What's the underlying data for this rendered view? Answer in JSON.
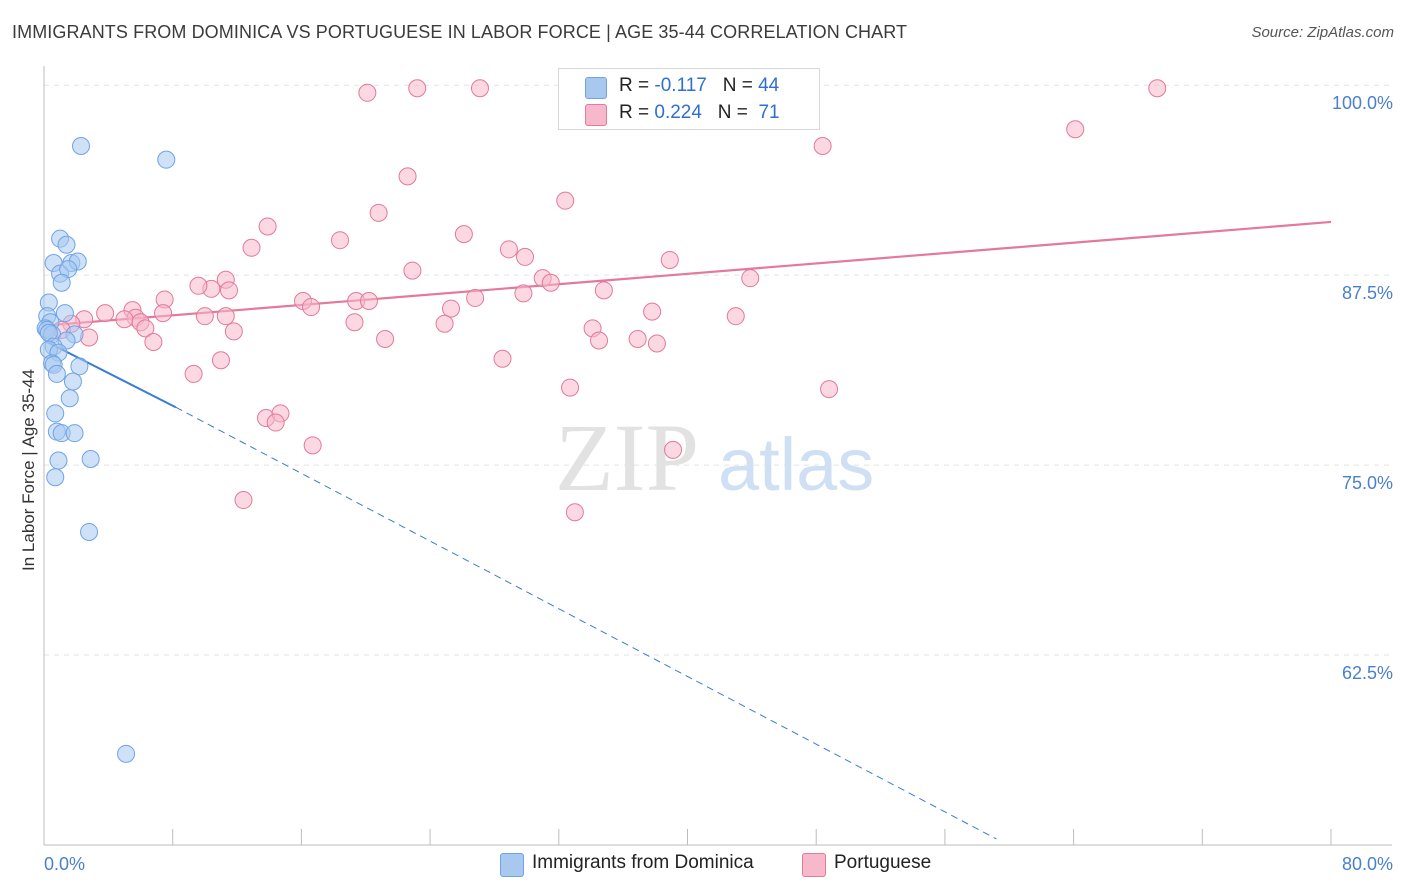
{
  "title": "IMMIGRANTS FROM DOMINICA VS PORTUGUESE IN LABOR FORCE | AGE 35-44 CORRELATION CHART",
  "source": "Source: ZipAtlas.com",
  "watermark": {
    "zip": "ZIP",
    "atlas": "atlas"
  },
  "legend": {
    "rows": [
      {
        "r_label": "R =",
        "r_value": "-0.117",
        "n_label": "N =",
        "n_value": "44",
        "color": "#a8c8f0"
      },
      {
        "r_label": "R =",
        "r_value": "0.224",
        "n_label": "N =",
        "n_value": "71",
        "color": "#f7b8cb"
      }
    ]
  },
  "bottom_legend": [
    {
      "label": "Immigrants from Dominica",
      "color": "#a8c8f0"
    },
    {
      "label": "Portuguese",
      "color": "#f7b8cb"
    }
  ],
  "chart_data": {
    "type": "scatter",
    "title": "IMMIGRANTS FROM DOMINICA VS PORTUGUESE IN LABOR FORCE | AGE 35-44 CORRELATION CHART",
    "xlabel": "",
    "ylabel": "In Labor Force | Age 35-44",
    "xlim": [
      0,
      80
    ],
    "ylim": [
      50,
      101
    ],
    "x_tick_labels": [
      "0.0%",
      "80.0%"
    ],
    "y_ticks": [
      62.5,
      75.0,
      87.5,
      100.0
    ],
    "y_tick_labels": [
      "62.5%",
      "75.0%",
      "87.5%",
      "100.0%"
    ],
    "grid": true,
    "series": [
      {
        "name": "Immigrants from Dominica",
        "color": "#6fa3e6",
        "fill": "#a8c8f0",
        "points": [
          [
            2.3,
            96.0
          ],
          [
            7.6,
            95.1
          ],
          [
            1.0,
            89.9
          ],
          [
            1.4,
            89.5
          ],
          [
            0.6,
            88.3
          ],
          [
            1.7,
            88.3
          ],
          [
            2.1,
            88.4
          ],
          [
            1.0,
            87.6
          ],
          [
            1.5,
            87.9
          ],
          [
            1.1,
            87.0
          ],
          [
            0.3,
            85.7
          ],
          [
            0.2,
            84.8
          ],
          [
            1.3,
            85.0
          ],
          [
            0.4,
            84.4
          ],
          [
            0.1,
            84.0
          ],
          [
            0.2,
            83.9
          ],
          [
            0.5,
            83.6
          ],
          [
            0.3,
            83.7
          ],
          [
            1.9,
            83.6
          ],
          [
            1.4,
            83.2
          ],
          [
            0.6,
            82.8
          ],
          [
            0.3,
            82.6
          ],
          [
            0.9,
            82.4
          ],
          [
            0.5,
            81.7
          ],
          [
            0.6,
            81.6
          ],
          [
            2.2,
            81.5
          ],
          [
            0.8,
            81.0
          ],
          [
            1.8,
            80.5
          ],
          [
            1.6,
            79.4
          ],
          [
            0.7,
            78.4
          ],
          [
            0.8,
            77.2
          ],
          [
            1.1,
            77.1
          ],
          [
            1.9,
            77.1
          ],
          [
            0.9,
            75.3
          ],
          [
            2.9,
            75.4
          ],
          [
            0.7,
            74.2
          ],
          [
            2.8,
            70.6
          ],
          [
            5.1,
            56.0
          ]
        ],
        "trend_solid": [
          [
            0.2,
            83.1
          ],
          [
            8.2,
            78.8
          ]
        ],
        "trend_dashed": [
          [
            8.2,
            78.8
          ],
          [
            59.2,
            50.4
          ]
        ]
      },
      {
        "name": "Portuguese",
        "color": "#e3799c",
        "fill": "#f7b8cb",
        "points": [
          [
            20.1,
            99.5
          ],
          [
            23.2,
            99.8
          ],
          [
            27.1,
            99.8
          ],
          [
            69.2,
            99.8
          ],
          [
            48.4,
            96.0
          ],
          [
            64.1,
            97.1
          ],
          [
            22.6,
            94.0
          ],
          [
            32.4,
            92.4
          ],
          [
            20.8,
            91.6
          ],
          [
            13.9,
            90.7
          ],
          [
            18.4,
            89.8
          ],
          [
            12.9,
            89.3
          ],
          [
            26.1,
            90.2
          ],
          [
            28.9,
            89.2
          ],
          [
            29.9,
            88.7
          ],
          [
            38.9,
            88.5
          ],
          [
            22.9,
            87.8
          ],
          [
            31.0,
            87.3
          ],
          [
            31.5,
            87.0
          ],
          [
            43.9,
            87.3
          ],
          [
            34.8,
            86.5
          ],
          [
            29.8,
            86.3
          ],
          [
            26.8,
            86.0
          ],
          [
            11.3,
            87.2
          ],
          [
            10.4,
            86.6
          ],
          [
            11.5,
            86.5
          ],
          [
            9.6,
            86.8
          ],
          [
            7.5,
            85.9
          ],
          [
            16.1,
            85.8
          ],
          [
            19.4,
            85.8
          ],
          [
            20.2,
            85.8
          ],
          [
            16.6,
            85.4
          ],
          [
            5.5,
            85.2
          ],
          [
            3.8,
            85.0
          ],
          [
            7.4,
            85.0
          ],
          [
            25.3,
            85.3
          ],
          [
            37.8,
            85.1
          ],
          [
            43.0,
            84.8
          ],
          [
            10.0,
            84.8
          ],
          [
            11.3,
            84.8
          ],
          [
            5.7,
            84.7
          ],
          [
            5.0,
            84.6
          ],
          [
            6.0,
            84.4
          ],
          [
            24.9,
            84.3
          ],
          [
            34.1,
            84.0
          ],
          [
            19.3,
            84.4
          ],
          [
            11.8,
            83.8
          ],
          [
            2.5,
            84.6
          ],
          [
            1.7,
            84.3
          ],
          [
            6.3,
            84.0
          ],
          [
            1.1,
            83.9
          ],
          [
            2.8,
            83.4
          ],
          [
            6.8,
            83.1
          ],
          [
            21.2,
            83.3
          ],
          [
            34.5,
            83.2
          ],
          [
            36.9,
            83.3
          ],
          [
            38.1,
            83.0
          ],
          [
            28.5,
            82.0
          ],
          [
            11.0,
            81.9
          ],
          [
            9.3,
            81.0
          ],
          [
            32.7,
            80.1
          ],
          [
            48.8,
            80.0
          ],
          [
            13.8,
            78.1
          ],
          [
            14.7,
            78.4
          ],
          [
            14.4,
            77.8
          ],
          [
            16.7,
            76.3
          ],
          [
            39.1,
            76.0
          ],
          [
            12.4,
            72.7
          ],
          [
            33.0,
            71.9
          ]
        ],
        "trend_solid": [
          [
            0.3,
            84.2
          ],
          [
            80.0,
            91.0
          ]
        ]
      }
    ]
  }
}
